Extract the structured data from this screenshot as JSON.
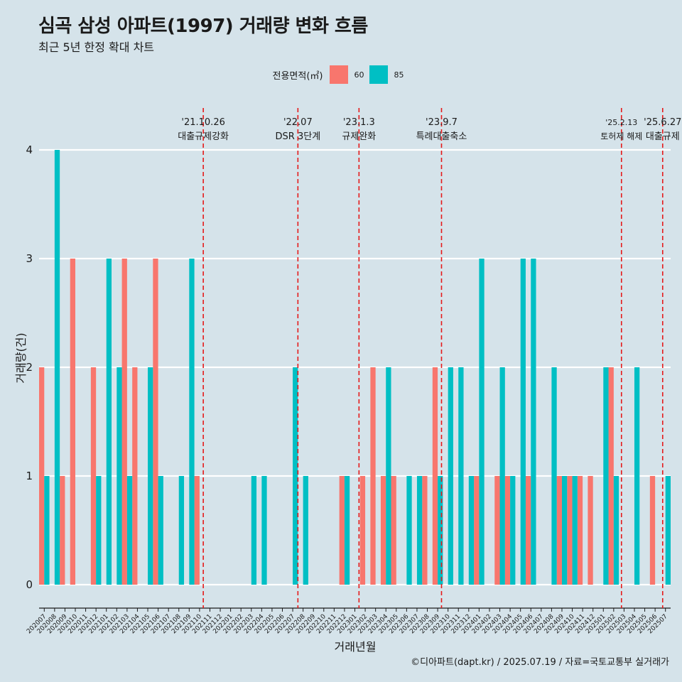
{
  "title": "심곡 삼성 아파트(1997) 거래량 변화 흐름",
  "subtitle": "최근 5년 한정 확대 차트",
  "legend": {
    "title": "전용면적(㎡)",
    "items": [
      {
        "label": "60",
        "color": "#f8766d"
      },
      {
        "label": "85",
        "color": "#00bfc4"
      }
    ]
  },
  "caption": "©디아파트(dapt.kr) / 2025.07.19 / 자료=국토교통부 실거래가",
  "chart_data": {
    "type": "bar",
    "title": "심곡 삼성 아파트(1997) 거래량 변화 흐름",
    "xlabel": "거래년월",
    "ylabel": "거래량(건)",
    "ylim": [
      -0.2,
      4.2
    ],
    "yticks": [
      0,
      1,
      2,
      3,
      4
    ],
    "categories": [
      "202007",
      "202008",
      "202009",
      "202010",
      "202011",
      "202012",
      "202101",
      "202102",
      "202103",
      "202104",
      "202105",
      "202106",
      "202107",
      "202108",
      "202109",
      "202110",
      "202111",
      "202112",
      "202201",
      "202202",
      "202203",
      "202204",
      "202205",
      "202206",
      "202207",
      "202208",
      "202209",
      "202210",
      "202211",
      "202212",
      "202301",
      "202302",
      "202303",
      "202304",
      "202305",
      "202306",
      "202307",
      "202308",
      "202309",
      "202310",
      "202311",
      "202312",
      "202401",
      "202402",
      "202403",
      "202404",
      "202405",
      "202406",
      "202407",
      "202408",
      "202409",
      "202410",
      "202411",
      "202412",
      "202501",
      "202502",
      "202503",
      "202504",
      "202505",
      "202506",
      "202507"
    ],
    "series": [
      {
        "name": "60",
        "color": "#f8766d",
        "values": [
          2,
          0,
          1,
          3,
          0,
          2,
          0,
          0,
          3,
          2,
          0,
          3,
          0,
          0,
          0,
          1,
          0,
          0,
          0,
          0,
          0,
          0,
          0,
          0,
          0,
          0,
          0,
          0,
          0,
          1,
          0,
          1,
          2,
          1,
          1,
          0,
          0,
          1,
          2,
          0,
          0,
          0,
          1,
          0,
          1,
          1,
          0,
          1,
          0,
          0,
          1,
          1,
          1,
          1,
          0,
          2,
          0,
          0,
          0,
          1,
          0
        ]
      },
      {
        "name": "85",
        "color": "#00bfc4",
        "values": [
          1,
          4,
          0,
          0,
          0,
          1,
          3,
          2,
          1,
          0,
          2,
          1,
          0,
          1,
          3,
          0,
          0,
          0,
          0,
          0,
          1,
          1,
          0,
          0,
          2,
          1,
          0,
          0,
          0,
          1,
          0,
          0,
          0,
          2,
          0,
          1,
          1,
          0,
          1,
          2,
          2,
          1,
          3,
          0,
          2,
          1,
          3,
          3,
          0,
          2,
          1,
          1,
          0,
          0,
          2,
          1,
          0,
          2,
          0,
          0,
          1
        ]
      }
    ],
    "events": [
      {
        "date": "'21.10.26",
        "label": "대출규제강화",
        "position": 15.36
      },
      {
        "date": "'22.07",
        "label": "DSR 3단계",
        "position": 24.5
      },
      {
        "date": "'23.1.3",
        "label": "규제완화",
        "position": 30.4
      },
      {
        "date": "'23.9.7",
        "label": "특례대출축소",
        "position": 38.37
      },
      {
        "date": "'25.2.13",
        "label": "토허제 해제",
        "position": 55.75
      },
      {
        "date": "'25.6.27",
        "label": "대출규제",
        "position": 59.73
      }
    ]
  }
}
